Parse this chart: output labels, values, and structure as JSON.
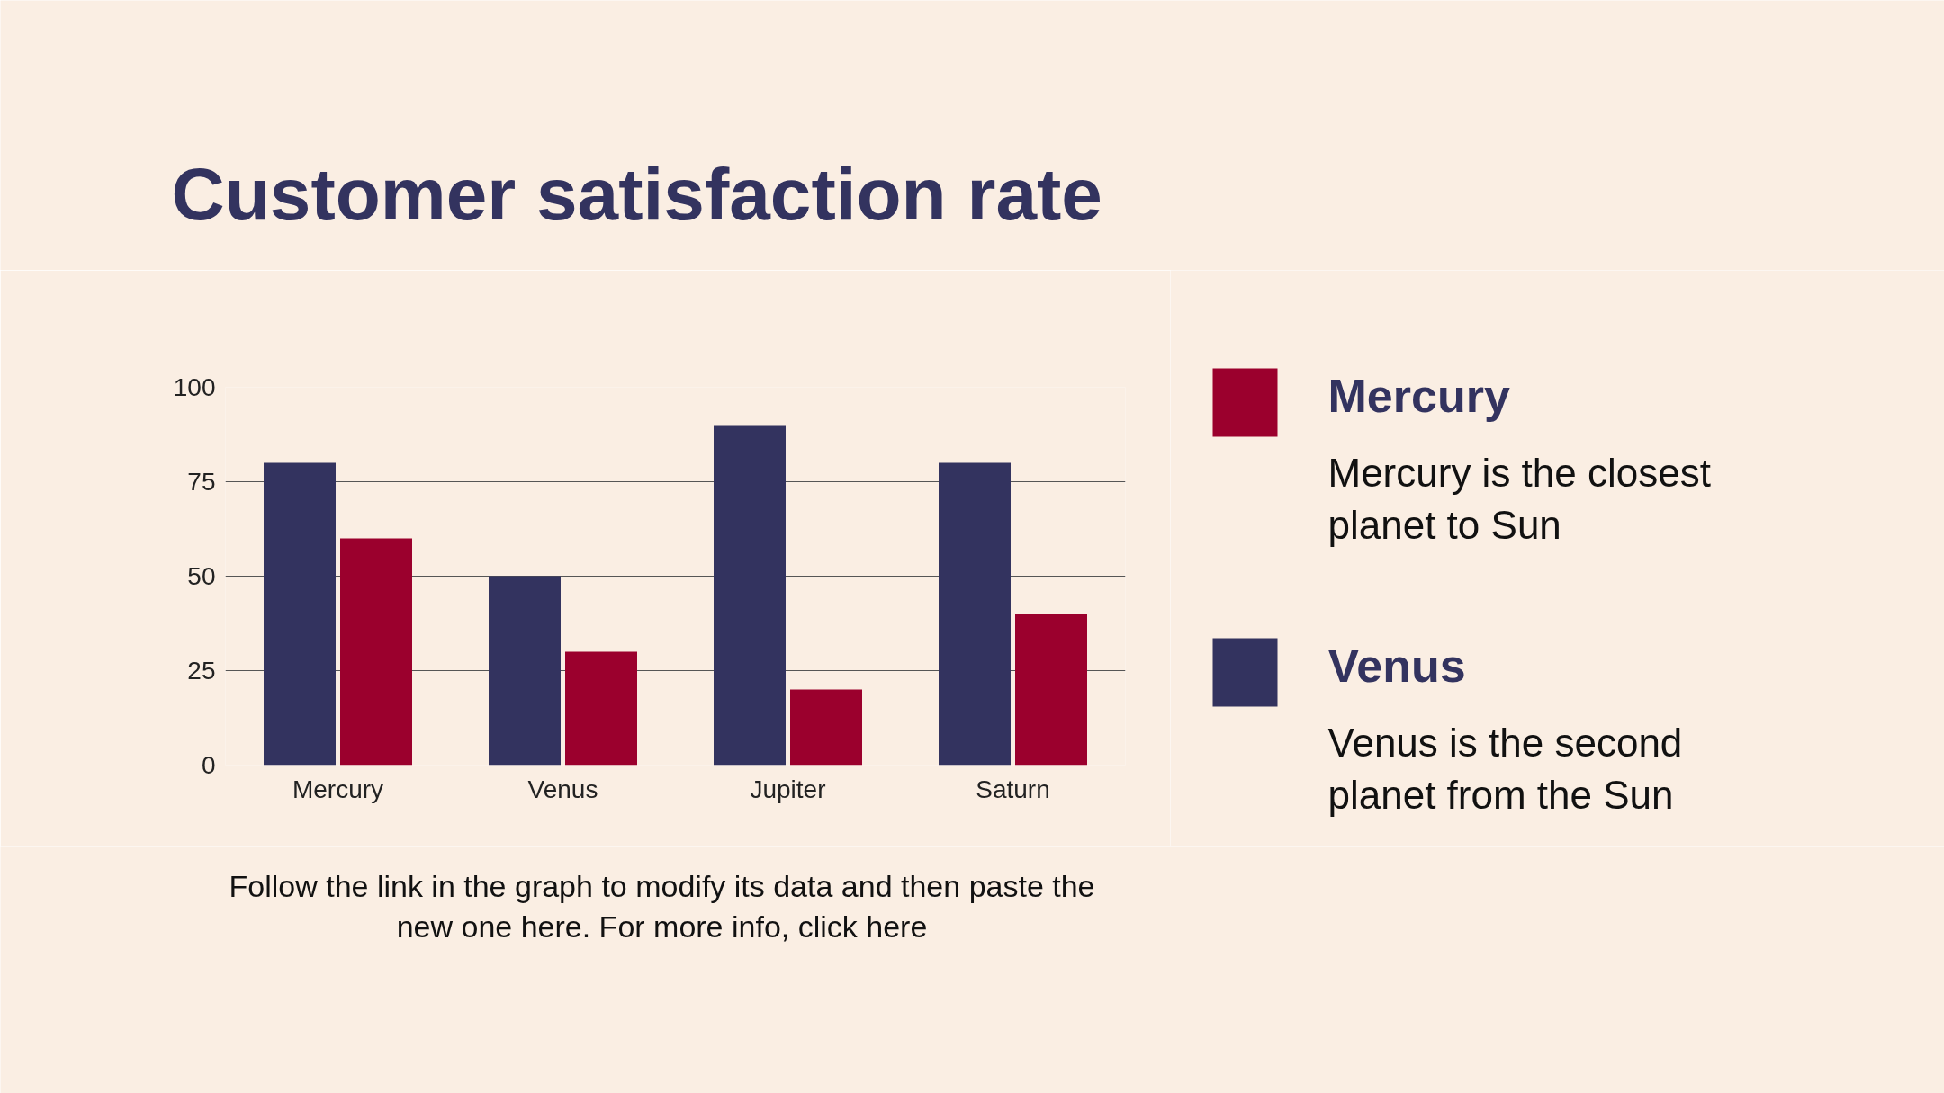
{
  "chart_data": {
    "type": "bar",
    "title": "Customer satisfaction rate",
    "categories": [
      "Mercury",
      "Venus",
      "Jupiter",
      "Saturn"
    ],
    "series": [
      {
        "name": "Venus",
        "color": "#33335f",
        "values": [
          80,
          50,
          90,
          80
        ]
      },
      {
        "name": "Mercury",
        "color": "#9b002d",
        "values": [
          60,
          30,
          20,
          40
        ]
      }
    ],
    "ylim": [
      0,
      100
    ],
    "yticks": [
      0,
      25,
      50,
      75,
      100
    ],
    "grid": "y",
    "legend": "right",
    "annotations": [
      "Mercury is the closest planet to Sun",
      "Venus is the second planet from the Sun",
      "Follow the link in the graph to modify its data and then paste the new one here. For more info, click here"
    ]
  }
}
